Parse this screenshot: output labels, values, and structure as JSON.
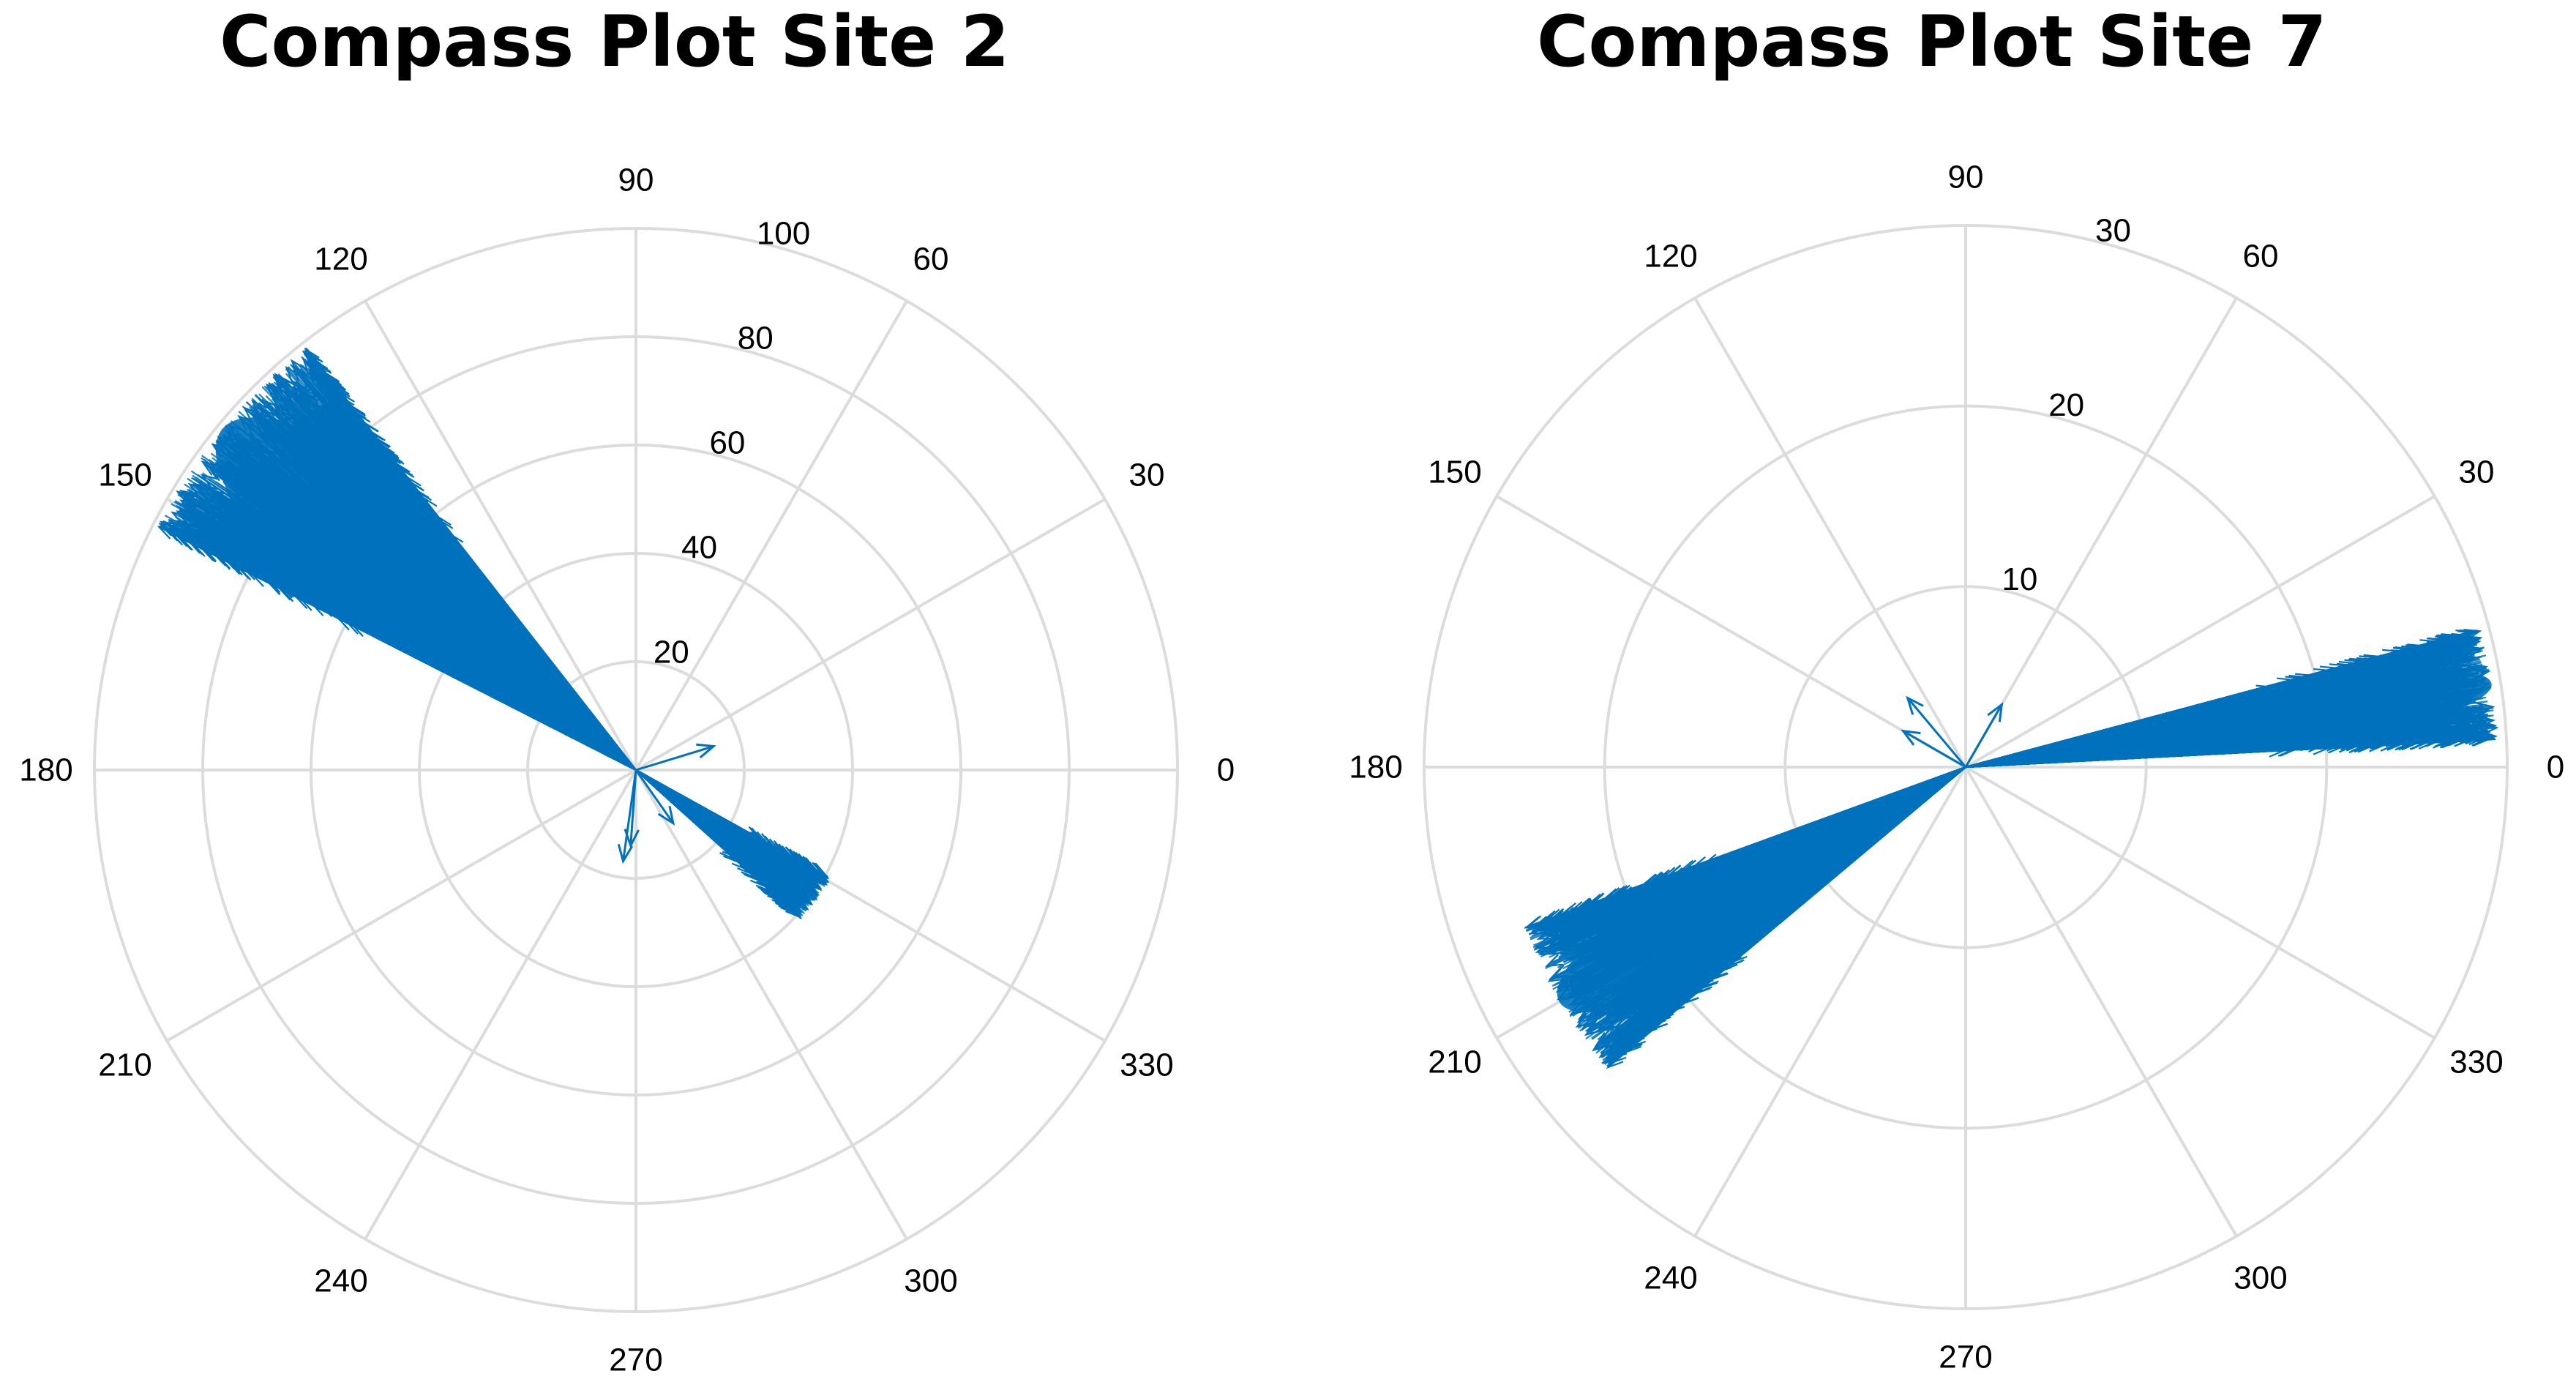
{
  "chart_data": [
    {
      "type": "compass",
      "title": "Compass Plot Site 2",
      "angle_ticks": [
        "0",
        "30",
        "60",
        "90",
        "120",
        "150",
        "180",
        "210",
        "240",
        "270",
        "300",
        "330"
      ],
      "radial_ticks": [
        "20",
        "40",
        "60",
        "80",
        "100"
      ],
      "rlim": [
        0,
        100
      ],
      "series_color": "#0072BD",
      "lobes": [
        {
          "angle_deg_from": 128,
          "angle_deg_to": 153,
          "r_min": 0,
          "r_max": 99
        },
        {
          "angle_deg_from": 318,
          "angle_deg_to": 331,
          "r_min": 0,
          "r_max": 41
        }
      ],
      "stray_vectors": [
        {
          "angle": 17,
          "r": 15
        },
        {
          "angle": 262,
          "r": 17
        },
        {
          "angle": 266,
          "r": 14
        },
        {
          "angle": 305,
          "r": 12
        }
      ]
    },
    {
      "type": "compass",
      "title": "Compass Plot Site 7",
      "angle_ticks": [
        "0",
        "30",
        "60",
        "90",
        "120",
        "150",
        "180",
        "210",
        "240",
        "270",
        "300",
        "330"
      ],
      "radial_ticks": [
        "10",
        "20",
        "30"
      ],
      "rlim": [
        0,
        30
      ],
      "series_color": "#0072BD",
      "lobes": [
        {
          "angle_deg_from": 3,
          "angle_deg_to": 15,
          "r_min": 0,
          "r_max": 29.5
        },
        {
          "angle_deg_from": 200,
          "angle_deg_to": 220,
          "r_min": 0,
          "r_max": 26
        }
      ],
      "stray_vectors": [
        {
          "angle": 60,
          "r": 4
        },
        {
          "angle": 130,
          "r": 5
        },
        {
          "angle": 150,
          "r": 4
        }
      ]
    }
  ]
}
